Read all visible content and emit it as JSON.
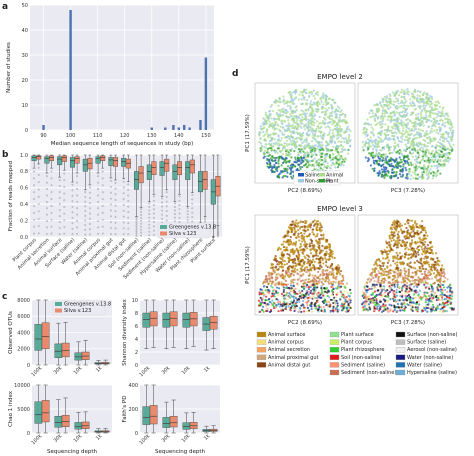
{
  "panels": {
    "a": "a",
    "b": "b",
    "c": "c",
    "d": "d"
  },
  "colors": {
    "blue": "#4c72b0",
    "greengenes": "#5aaa9a",
    "silva": "#ea8a6c",
    "axes_bg": "#eaeaf2"
  },
  "chart_data": [
    {
      "id": "a",
      "type": "bar",
      "xlabel": "Median sequence length of sequences in study (bp)",
      "ylabel": "Number of studies",
      "xlim": [
        85,
        153
      ],
      "ylim": [
        0,
        50
      ],
      "xticks": [
        90,
        100,
        110,
        120,
        130,
        140,
        150
      ],
      "yticks": [
        0,
        10,
        20,
        30,
        40,
        50
      ],
      "x": [
        90,
        100,
        130,
        135,
        138,
        140,
        142,
        144,
        148,
        150
      ],
      "values": [
        2,
        48,
        1,
        1,
        2,
        1,
        2,
        1,
        4,
        29
      ]
    },
    {
      "id": "b",
      "type": "box",
      "ylabel": "Fraction of reads mapped",
      "ylim": [
        0,
        1.0
      ],
      "yticks": [
        "0.0",
        "0.2",
        "0.4",
        "0.6",
        "0.8",
        "1.0"
      ],
      "categories": [
        "Plant corpus",
        "Animal secretion",
        "Animal surface",
        "Surface (saline)",
        "Water (saline)",
        "Animal corpus",
        "Animal proximal gut",
        "Animal distal gut",
        "Soil (non-saline)",
        "Sediment (saline)",
        "Sediment (non-saline)",
        "Hypersaline (saline)",
        "Water (non-saline)",
        "Plant rhizosphere",
        "Plant surface"
      ],
      "legend": [
        "Greengenes v.13.8",
        "Silva v.123"
      ],
      "series": [
        {
          "name": "Greengenes v.13.8",
          "median": [
            0.97,
            0.96,
            0.95,
            0.93,
            0.88,
            0.96,
            0.94,
            0.92,
            0.7,
            0.8,
            0.85,
            0.8,
            0.85,
            0.68,
            0.55
          ],
          "q1": [
            0.93,
            0.9,
            0.88,
            0.85,
            0.8,
            0.9,
            0.87,
            0.86,
            0.58,
            0.7,
            0.75,
            0.7,
            0.7,
            0.55,
            0.4
          ],
          "q3": [
            0.99,
            0.98,
            0.98,
            0.97,
            0.95,
            0.98,
            0.97,
            0.96,
            0.8,
            0.88,
            0.92,
            0.88,
            0.92,
            0.8,
            0.7
          ]
        },
        {
          "name": "Silva v.123",
          "median": [
            0.98,
            0.97,
            0.97,
            0.96,
            0.9,
            0.97,
            0.93,
            0.9,
            0.78,
            0.85,
            0.9,
            0.85,
            0.88,
            0.7,
            0.62
          ],
          "q1": [
            0.95,
            0.93,
            0.92,
            0.9,
            0.83,
            0.93,
            0.86,
            0.84,
            0.66,
            0.76,
            0.8,
            0.76,
            0.78,
            0.58,
            0.5
          ],
          "q3": [
            0.99,
            0.99,
            0.99,
            0.98,
            0.96,
            0.99,
            0.97,
            0.95,
            0.86,
            0.92,
            0.95,
            0.92,
            0.94,
            0.8,
            0.74
          ]
        }
      ]
    },
    {
      "id": "c1",
      "type": "box",
      "ylabel": "Observed OTUs",
      "ylim": [
        0,
        8000
      ],
      "yticks": [
        "0",
        "2000",
        "4000",
        "6000",
        "8000"
      ],
      "categories": [
        "100k",
        "30k",
        "10k",
        "1k"
      ],
      "legend": [
        "Greengenes v.13.8",
        "Silva v.123"
      ],
      "series": [
        {
          "name": "Greengenes v.13.8",
          "median": [
            3200,
            1700,
            1000,
            200
          ],
          "q1": [
            1800,
            900,
            600,
            120
          ],
          "q3": [
            5000,
            2600,
            1500,
            300
          ]
        },
        {
          "name": "Silva v.123",
          "median": [
            3500,
            1800,
            1100,
            220
          ],
          "q1": [
            2000,
            1000,
            650,
            130
          ],
          "q3": [
            5200,
            2700,
            1600,
            320
          ]
        }
      ]
    },
    {
      "id": "c2",
      "type": "box",
      "ylabel": "Shannon diversity index",
      "ylim": [
        0,
        10
      ],
      "yticks": [
        "0",
        "2",
        "4",
        "6",
        "8",
        "10"
      ],
      "categories": [
        "100k",
        "30k",
        "10k",
        "1k"
      ],
      "series": [
        {
          "name": "Greengenes v.13.8",
          "median": [
            7.0,
            7.0,
            7.0,
            6.3
          ],
          "q1": [
            5.8,
            5.8,
            5.8,
            5.3
          ],
          "q3": [
            8.0,
            8.0,
            8.0,
            7.3
          ]
        },
        {
          "name": "Silva v.123",
          "median": [
            7.2,
            7.2,
            7.1,
            6.5
          ],
          "q1": [
            6.0,
            6.0,
            6.0,
            5.5
          ],
          "q3": [
            8.2,
            8.2,
            8.1,
            7.5
          ]
        }
      ]
    },
    {
      "id": "c3",
      "type": "box",
      "ylabel": "Chao 1 index",
      "xlabel": "Sequencing depth",
      "ylim": [
        0,
        10000
      ],
      "yticks": [
        "0",
        "5000",
        "10000"
      ],
      "categories": [
        "100k",
        "30k",
        "10k",
        "1k"
      ],
      "series": [
        {
          "name": "Greengenes v.13.8",
          "median": [
            3800,
            2200,
            1400,
            300
          ],
          "q1": [
            2000,
            1200,
            800,
            150
          ],
          "q3": [
            6500,
            3500,
            2200,
            450
          ]
        },
        {
          "name": "Silva v.123",
          "median": [
            4200,
            2400,
            1500,
            320
          ],
          "q1": [
            2300,
            1300,
            900,
            170
          ],
          "q3": [
            6800,
            3700,
            2300,
            480
          ]
        }
      ]
    },
    {
      "id": "c4",
      "type": "box",
      "ylabel": "Faith's PD",
      "xlabel": "Sequencing depth",
      "ylim": [
        0,
        400
      ],
      "yticks": [
        "0",
        "200",
        "400"
      ],
      "categories": [
        "100k",
        "30k",
        "10k",
        "1k"
      ],
      "series": [
        {
          "name": "Greengenes v.13.8",
          "median": [
            130,
            80,
            55,
            20
          ],
          "q1": [
            70,
            45,
            30,
            12
          ],
          "q3": [
            220,
            130,
            85,
            30
          ]
        },
        {
          "name": "Silva v.123",
          "median": [
            140,
            85,
            60,
            22
          ],
          "q1": [
            75,
            50,
            35,
            13
          ],
          "q3": [
            230,
            140,
            90,
            32
          ]
        }
      ]
    },
    {
      "id": "d",
      "type": "scatter",
      "titles": [
        "EMPO level 2",
        "EMPO level 3"
      ],
      "xlabels": [
        "PC2 (8.69%)",
        "PC3 (7.28%)"
      ],
      "ylabel": "PC1 (17.59%)",
      "legend_level2": [
        {
          "name": "Saline",
          "color": "#1f5bb5"
        },
        {
          "name": "Animal",
          "color": "#a9dc8c"
        },
        {
          "name": "Non-saline",
          "color": "#9ecae1"
        },
        {
          "name": "Plant",
          "color": "#2ca02c"
        }
      ],
      "legend_level3": [
        {
          "name": "Animal surface",
          "color": "#b8860b"
        },
        {
          "name": "Animal corpus",
          "color": "#f5de79"
        },
        {
          "name": "Animal secretion",
          "color": "#f4a460"
        },
        {
          "name": "Animal proximal gut",
          "color": "#d2a679"
        },
        {
          "name": "Animal distal gut",
          "color": "#8b4513"
        },
        {
          "name": "Plant surface",
          "color": "#8fe08f"
        },
        {
          "name": "Plant corpus",
          "color": "#c9f060"
        },
        {
          "name": "Plant rhizosphere",
          "color": "#32cd32"
        },
        {
          "name": "Soil (non-saline)",
          "color": "#e31a1c"
        },
        {
          "name": "Sediment (saline)",
          "color": "#fc9272"
        },
        {
          "name": "Sediment (non-saline)",
          "color": "#cb6d51"
        },
        {
          "name": "Surface (non-saline)",
          "color": "#111111"
        },
        {
          "name": "Surface (saline)",
          "color": "#bdbdbd"
        },
        {
          "name": "Aerosol (non-saline)",
          "color": "#f0f0f0"
        },
        {
          "name": "Water (non-saline)",
          "color": "#1a1a80"
        },
        {
          "name": "Water (saline)",
          "color": "#2171b5"
        },
        {
          "name": "Hypersaline (saline)",
          "color": "#6baed6"
        }
      ]
    }
  ]
}
